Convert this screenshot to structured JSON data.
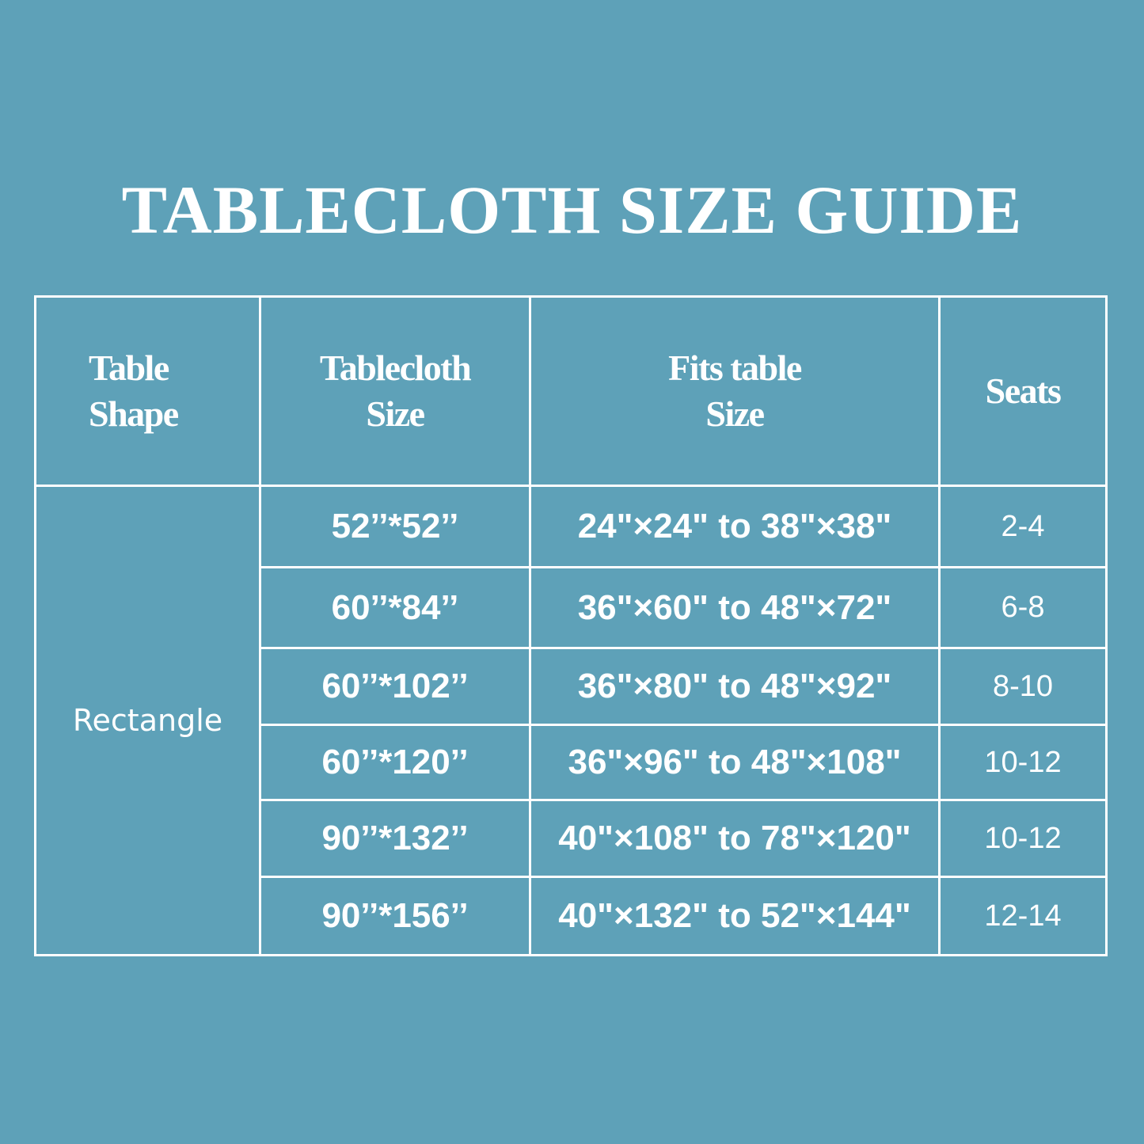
{
  "title": "TABLECLOTH SIZE GUIDE",
  "colors": {
    "background": "#5ea1b8",
    "text": "#ffffff",
    "grid": "#ffffff"
  },
  "table": {
    "headers": {
      "shape": [
        "Table",
        "Shape"
      ],
      "size": [
        "Tablecloth",
        "Size"
      ],
      "fits": [
        "Fits table",
        "Size"
      ],
      "seats": "Seats"
    },
    "shape": "Rectangle",
    "rows": [
      {
        "size": "52’’*52’’",
        "fits": "24\"×24\" to 38\"×38\"",
        "seats": "2-4"
      },
      {
        "size": "60’’*84’’",
        "fits": "36\"×60\" to 48\"×72\"",
        "seats": "6-8"
      },
      {
        "size": "60’’*102’’",
        "fits": "36\"×80\" to 48\"×92\"",
        "seats": "8-10"
      },
      {
        "size": "60’’*120’’",
        "fits": "36\"×96\" to 48\"×108\"",
        "seats": "10-12"
      },
      {
        "size": "90’’*132’’",
        "fits": "40\"×108\" to 78\"×120\"",
        "seats": "10-12"
      },
      {
        "size": "90’’*156’’",
        "fits": "40\"×132\" to 52\"×144\"",
        "seats": "12-14"
      }
    ]
  }
}
